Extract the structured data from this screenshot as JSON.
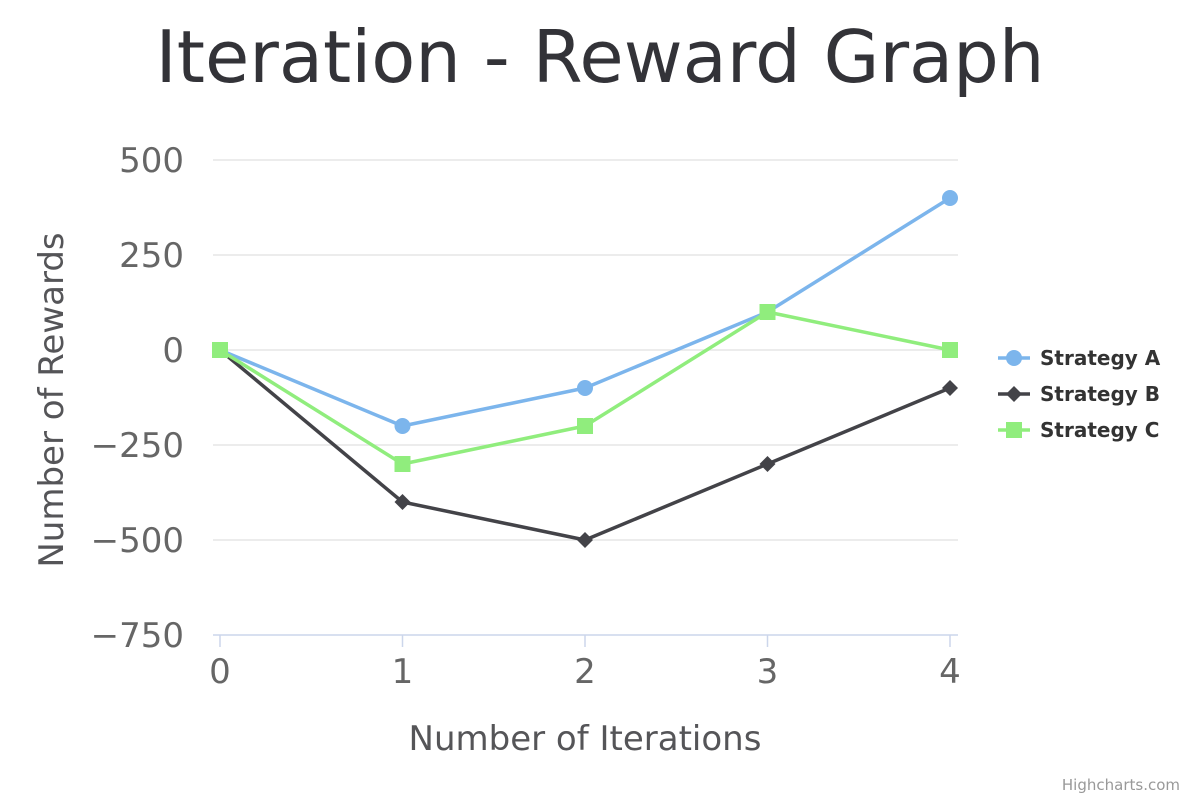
{
  "chart_data": {
    "type": "line",
    "title": "Iteration - Reward Graph",
    "xlabel": "Number of Iterations",
    "ylabel": "Number of Rewards",
    "x": [
      0,
      1,
      2,
      3,
      4
    ],
    "x_tick_labels": [
      "0",
      "1",
      "2",
      "3",
      "4"
    ],
    "ylim": [
      -750,
      500
    ],
    "y_ticks": [
      500,
      250,
      0,
      -250,
      -500,
      -750
    ],
    "y_tick_labels": [
      "500",
      "250",
      "0",
      "−250",
      "−500",
      "−750"
    ],
    "grid": true,
    "legend_position": "right",
    "series": [
      {
        "name": "Strategy A",
        "values": [
          0,
          -200,
          -100,
          100,
          400
        ],
        "color": "#7cb5ec",
        "marker": "circle"
      },
      {
        "name": "Strategy B",
        "values": [
          0,
          -400,
          -500,
          -300,
          -100
        ],
        "color": "#434348",
        "marker": "diamond"
      },
      {
        "name": "Strategy C",
        "values": [
          0,
          -300,
          -200,
          100,
          0
        ],
        "color": "#90ed7d",
        "marker": "square"
      }
    ]
  },
  "credits": "Highcharts.com"
}
